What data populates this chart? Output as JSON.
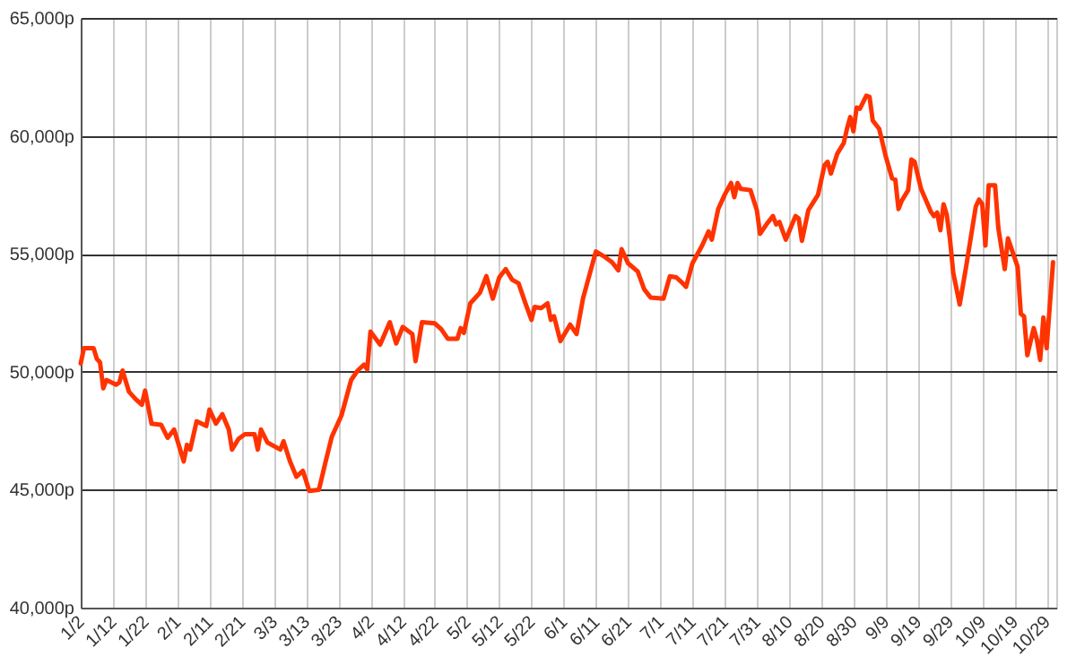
{
  "chart_data": {
    "type": "line",
    "grid": true,
    "marker": "none",
    "line_style": "solid",
    "xlim": [
      "--01-02",
      "--11-01"
    ],
    "xticks": [
      {
        "value": "--01-02",
        "label": "1/2"
      },
      {
        "value": "--01-12",
        "label": "1/12"
      },
      {
        "value": "--01-22",
        "label": "1/22"
      },
      {
        "value": "--02-01",
        "label": "2/1"
      },
      {
        "value": "--02-11",
        "label": "2/11"
      },
      {
        "value": "--02-21",
        "label": "2/21"
      },
      {
        "value": "--03-03",
        "label": "3/3"
      },
      {
        "value": "--03-13",
        "label": "3/13"
      },
      {
        "value": "--03-23",
        "label": "3/23"
      },
      {
        "value": "--04-02",
        "label": "4/2"
      },
      {
        "value": "--04-12",
        "label": "4/12"
      },
      {
        "value": "--04-22",
        "label": "4/22"
      },
      {
        "value": "--05-02",
        "label": "5/2"
      },
      {
        "value": "--05-12",
        "label": "5/12"
      },
      {
        "value": "--05-22",
        "label": "5/22"
      },
      {
        "value": "--06-01",
        "label": "6/1"
      },
      {
        "value": "--06-11",
        "label": "6/11"
      },
      {
        "value": "--06-21",
        "label": "6/21"
      },
      {
        "value": "--07-01",
        "label": "7/1"
      },
      {
        "value": "--07-11",
        "label": "7/11"
      },
      {
        "value": "--07-21",
        "label": "7/21"
      },
      {
        "value": "--07-31",
        "label": "7/31"
      },
      {
        "value": "--08-10",
        "label": "8/10"
      },
      {
        "value": "--08-20",
        "label": "8/20"
      },
      {
        "value": "--08-30",
        "label": "8/30"
      },
      {
        "value": "--09-09",
        "label": "9/9"
      },
      {
        "value": "--09-19",
        "label": "9/19"
      },
      {
        "value": "--09-29",
        "label": "9/29"
      },
      {
        "value": "--10-09",
        "label": "10/9"
      },
      {
        "value": "--10-19",
        "label": "10/19"
      },
      {
        "value": "--10-29",
        "label": "10/29"
      }
    ],
    "ylim": [
      40000,
      65000
    ],
    "yticks": [
      {
        "value": 40000,
        "label": "40,000p"
      },
      {
        "value": 45000,
        "label": "45,000p"
      },
      {
        "value": 50000,
        "label": "50,000p"
      },
      {
        "value": 55000,
        "label": "55,000p"
      },
      {
        "value": 60000,
        "label": "60,000p"
      },
      {
        "value": 65000,
        "label": "65,000p"
      }
    ],
    "x": [
      "--01-02",
      "--01-03",
      "--01-06",
      "--01-07",
      "--01-08",
      "--01-09",
      "--01-10",
      "--01-13",
      "--01-14",
      "--01-15",
      "--01-17",
      "--01-19",
      "--01-21",
      "--01-22",
      "--01-24",
      "--01-27",
      "--01-29",
      "--01-31",
      "--02-03",
      "--02-04",
      "--02-05",
      "--02-07",
      "--02-10",
      "--02-11",
      "--02-13",
      "--02-15",
      "--02-17",
      "--02-18",
      "--02-20",
      "--02-22",
      "--02-25",
      "--02-26",
      "--02-27",
      "--03-01",
      "--03-05",
      "--03-06",
      "--03-08",
      "--03-10",
      "--03-12",
      "--03-14",
      "--03-17",
      "--03-19",
      "--03-21",
      "--03-24",
      "--03-27",
      "--03-29",
      "--03-31",
      "--04-01",
      "--04-02",
      "--04-05",
      "--04-08",
      "--04-10",
      "--04-12",
      "--04-15",
      "--04-16",
      "--04-18",
      "--04-22",
      "--04-24",
      "--04-26",
      "--04-29",
      "--04-30",
      "--05-01",
      "--05-03",
      "--05-06",
      "--05-08",
      "--05-10",
      "--05-12",
      "--05-14",
      "--05-16",
      "--05-18",
      "--05-20",
      "--05-22",
      "--05-23",
      "--05-25",
      "--05-27",
      "--05-28",
      "--05-29",
      "--05-31",
      "--06-03",
      "--06-05",
      "--06-07",
      "--06-09",
      "--06-11",
      "--06-14",
      "--06-16",
      "--06-18",
      "--06-19",
      "--06-21",
      "--06-24",
      "--06-26",
      "--06-28",
      "--07-02",
      "--07-04",
      "--07-06",
      "--07-08",
      "--07-09",
      "--07-11",
      "--07-14",
      "--07-16",
      "--07-17",
      "--07-19",
      "--07-21",
      "--07-23",
      "--07-24",
      "--07-25",
      "--07-26",
      "--07-29",
      "--07-31",
      "--08-01",
      "--08-03",
      "--08-05",
      "--08-06",
      "--08-07",
      "--08-09",
      "--08-12",
      "--08-13",
      "--08-14",
      "--08-16",
      "--08-19",
      "--08-21",
      "--08-22",
      "--08-23",
      "--08-25",
      "--08-27",
      "--08-28",
      "--08-29",
      "--08-30",
      "--08-31",
      "--09-01",
      "--09-03",
      "--09-04",
      "--09-05",
      "--09-07",
      "--09-09",
      "--09-11",
      "--09-12",
      "--09-13",
      "--09-14",
      "--09-16",
      "--09-17",
      "--09-18",
      "--09-20",
      "--09-23",
      "--09-24",
      "--09-25",
      "--09-26",
      "--09-27",
      "--09-28",
      "--09-29",
      "--09-30",
      "--10-02",
      "--10-04",
      "--10-07",
      "--10-08",
      "--10-09",
      "--10-10",
      "--10-11",
      "--10-13",
      "--10-14",
      "--10-16",
      "--10-17",
      "--10-20",
      "--10-21",
      "--10-22",
      "--10-23",
      "--10-25",
      "--10-26",
      "--10-27",
      "--10-28",
      "--10-29",
      "--10-31"
    ],
    "series": [
      {
        "color": "#ff3300",
        "values": [
          50350,
          51000,
          51000,
          50550,
          50400,
          49300,
          49650,
          49450,
          49550,
          50050,
          49150,
          48850,
          48600,
          49200,
          47800,
          47750,
          47200,
          47550,
          46200,
          46900,
          46700,
          47900,
          47700,
          48400,
          47800,
          48200,
          47550,
          46700,
          47150,
          47350,
          47350,
          46700,
          47550,
          47000,
          46700,
          47050,
          46200,
          45550,
          45800,
          44950,
          45000,
          46150,
          47250,
          48150,
          49650,
          50050,
          50300,
          50100,
          51700,
          51150,
          52100,
          51200,
          51900,
          51600,
          50450,
          52100,
          52050,
          51800,
          51400,
          51400,
          51850,
          51650,
          52900,
          53350,
          54050,
          53100,
          54000,
          54350,
          53900,
          53750,
          52950,
          52200,
          52750,
          52700,
          52900,
          52200,
          52350,
          51300,
          52000,
          51600,
          53100,
          54100,
          55100,
          54850,
          54650,
          54300,
          55200,
          54600,
          54250,
          53500,
          53150,
          53100,
          54050,
          54000,
          53750,
          53600,
          54600,
          55350,
          55950,
          55600,
          56900,
          57500,
          58000,
          57400,
          58000,
          57750,
          57700,
          56850,
          55850,
          56250,
          56600,
          56250,
          56350,
          55600,
          56600,
          56500,
          55550,
          56850,
          57500,
          58750,
          58900,
          58400,
          59250,
          59700,
          60300,
          60800,
          60200,
          61200,
          61150,
          61700,
          61650,
          60650,
          60300,
          59150,
          58200,
          58150,
          56900,
          57250,
          57700,
          59000,
          58900,
          57750,
          56800,
          56600,
          56750,
          56000,
          57100,
          56650,
          55600,
          54200,
          52850,
          54450,
          57000,
          57300,
          57100,
          55350,
          57900,
          57900,
          56100,
          54350,
          55650,
          54450,
          52450,
          52350,
          50700,
          51850,
          51350,
          50500,
          52300,
          51000,
          54650
        ]
      }
    ]
  }
}
